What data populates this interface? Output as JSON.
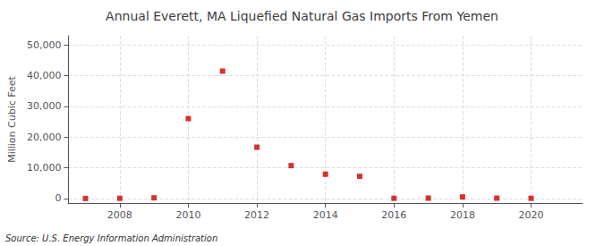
{
  "chart_data": {
    "type": "scatter",
    "title": "Annual Everett, MA Liquefied Natural Gas Imports From Yemen",
    "ylabel": "Million Cubic Feet",
    "source": "Source: U.S. Energy Information Administration",
    "x": [
      2007,
      2008,
      2009,
      2010,
      2011,
      2012,
      2013,
      2014,
      2015,
      2016,
      2017,
      2018,
      2019,
      2020
    ],
    "values": [
      0,
      50,
      200,
      26000,
      41500,
      16700,
      10700,
      7900,
      7200,
      50,
      100,
      500,
      100,
      50
    ],
    "color": "#cc0000",
    "marker": "square",
    "xlim": [
      2006.5,
      2021.5
    ],
    "xticks": [
      2008,
      2010,
      2012,
      2014,
      2016,
      2018,
      2020
    ],
    "ylim": [
      -1500,
      53000
    ],
    "yticks": [
      {
        "value": 0,
        "label": "0"
      },
      {
        "value": 10000,
        "label": "10,000"
      },
      {
        "value": 20000,
        "label": "20,000"
      },
      {
        "value": 30000,
        "label": "30,000"
      },
      {
        "value": 40000,
        "label": "40,000"
      },
      {
        "value": 50000,
        "label": "50,000"
      }
    ],
    "grid": true
  }
}
